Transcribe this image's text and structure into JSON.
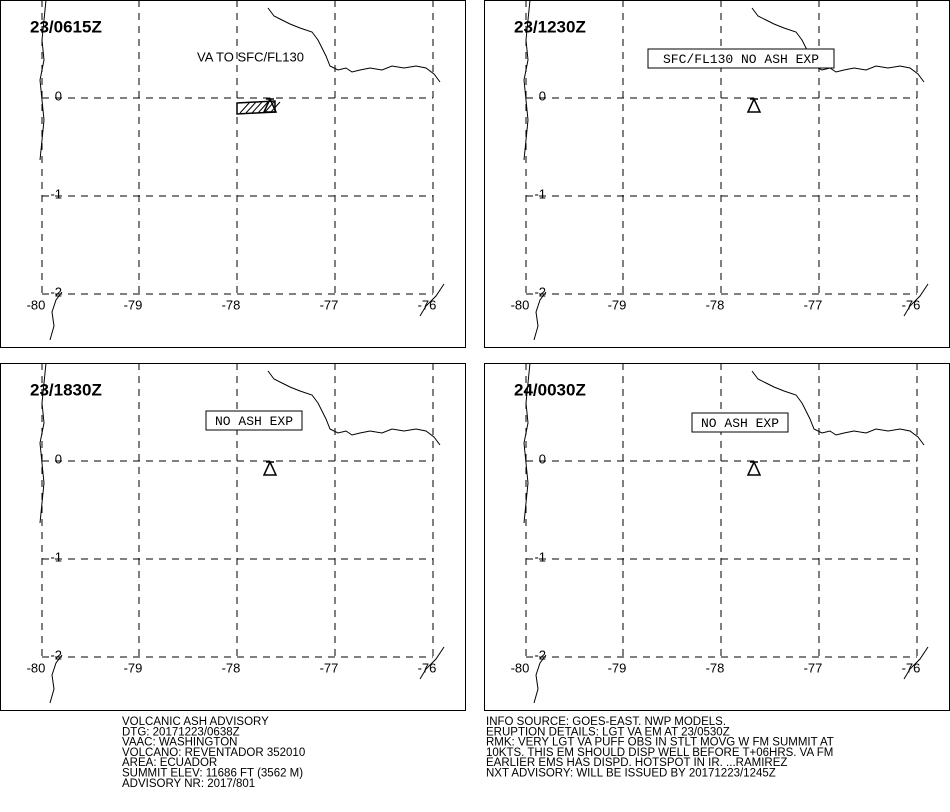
{
  "grid": {
    "lon_labels": [
      -80,
      -79,
      -78,
      -77,
      -76
    ],
    "lat_labels": [
      0,
      -1,
      -2
    ]
  },
  "panels": [
    {
      "time": "23/0615Z",
      "annotation": "VA TO SFC/FL130"
    },
    {
      "time": "23/1230Z",
      "annotation": "SFC/FL130 NO ASH EXP"
    },
    {
      "time": "23/1830Z",
      "annotation": "NO ASH EXP"
    },
    {
      "time": "24/0030Z",
      "annotation": "NO ASH EXP"
    }
  ],
  "advisory_left": [
    "VOLCANIC ASH ADVISORY",
    "DTG: 20171223/0638Z",
    "VAAC: WASHINGTON",
    "VOLCANO: REVENTADOR 352010",
    "AREA: ECUADOR",
    "SUMMIT ELEV: 11686 FT (3562 M)",
    "ADVISORY NR: 2017/801"
  ],
  "advisory_right": [
    "INFO SOURCE: GOES-EAST. NWP MODELS.",
    "ERUPTION DETAILS: LGT VA EM AT 23/0530Z",
    "RMK: VERY LGT VA PUFF OBS IN STLT MOVG W FM SUMMIT AT",
    "10KTS. THIS EM SHOULD DISP WELL BEFORE T+06HRS. VA FM",
    "EARLIER EMS HAS DISPD. HOTSPOT IN IR. ...RAMIREZ",
    "NXT ADVISORY: WILL BE ISSUED BY 20171223/1245Z"
  ]
}
